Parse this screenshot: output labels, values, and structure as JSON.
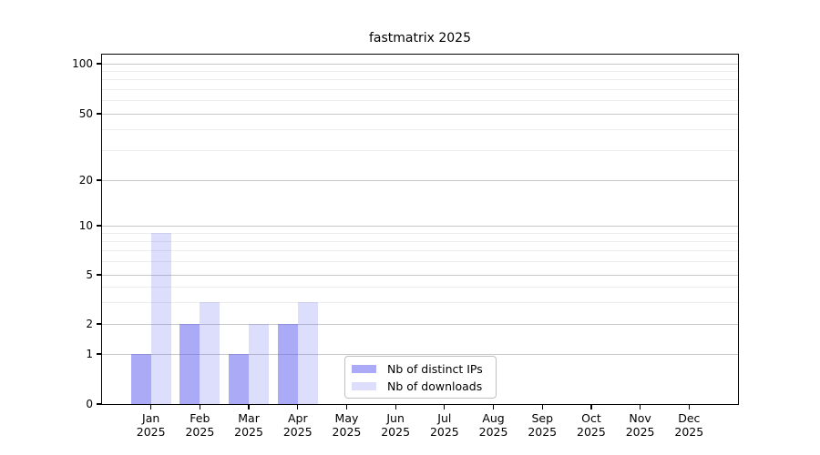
{
  "chart_data": {
    "type": "bar",
    "title": "fastmatrix 2025",
    "x": {
      "months": [
        "Jan",
        "Feb",
        "Mar",
        "Apr",
        "May",
        "Jun",
        "Jul",
        "Aug",
        "Sep",
        "Oct",
        "Nov",
        "Dec"
      ],
      "year": "2025"
    },
    "series": [
      {
        "name": "Nb of distinct IPs",
        "color": "rgba(85,85,238,0.5)",
        "hex_on_white": "#aaaaf1",
        "values": [
          1,
          2,
          1,
          2,
          0,
          0,
          0,
          0,
          0,
          0,
          0,
          0
        ]
      },
      {
        "name": "Nb of downloads",
        "color": "rgba(85,85,238,0.2)",
        "hex_on_white": "#dbdbf8",
        "values": [
          9,
          3,
          2,
          3,
          0,
          0,
          0,
          0,
          0,
          0,
          0,
          0
        ]
      }
    ],
    "yscale": "symlog",
    "ylim": [
      0,
      115
    ],
    "yticks": [
      0,
      1,
      2,
      5,
      10,
      20,
      50,
      100
    ],
    "minor_yticks": [
      3,
      4,
      6,
      7,
      8,
      9,
      30,
      40,
      60,
      70,
      80,
      90
    ],
    "grid": true,
    "legend": {
      "entries": [
        "Nb of distinct IPs",
        "Nb of downloads"
      ],
      "position": "lower-center"
    },
    "colors": {
      "grid_major": "#c8c8c8",
      "grid_minor": "#ededed",
      "axis": "#000000",
      "background": "#ffffff"
    }
  }
}
